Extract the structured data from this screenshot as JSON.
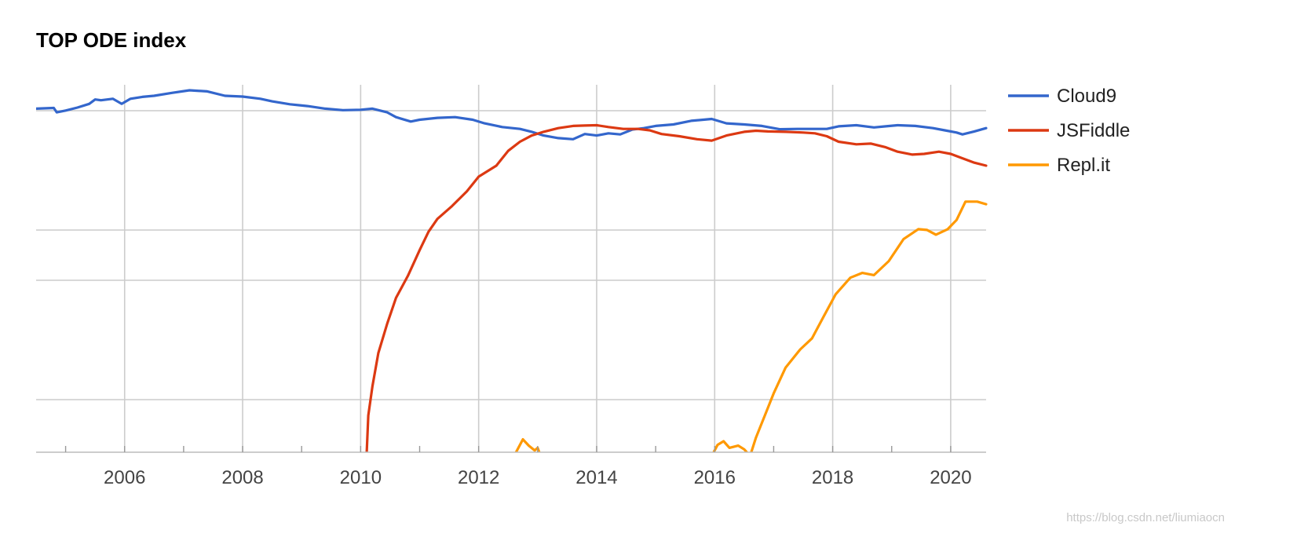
{
  "chart_data": {
    "type": "line",
    "title": "TOP ODE index",
    "xlabel": "",
    "ylabel": "",
    "xlim": [
      2004.5,
      2020.6
    ],
    "ylim": [
      0,
      1.0
    ],
    "x_ticks": [
      "2006",
      "2008",
      "2010",
      "2012",
      "2014",
      "2016",
      "2018",
      "2020"
    ],
    "grid": true,
    "legend_position": "right",
    "series": [
      {
        "name": "Cloud9",
        "color": "#3366cc",
        "points": [
          [
            2004.5,
            0.935
          ],
          [
            2004.8,
            0.937
          ],
          [
            2004.85,
            0.925
          ],
          [
            2005.0,
            0.93
          ],
          [
            2005.2,
            0.938
          ],
          [
            2005.4,
            0.948
          ],
          [
            2005.5,
            0.96
          ],
          [
            2005.6,
            0.958
          ],
          [
            2005.8,
            0.962
          ],
          [
            2005.95,
            0.948
          ],
          [
            2006.1,
            0.962
          ],
          [
            2006.3,
            0.967
          ],
          [
            2006.5,
            0.97
          ],
          [
            2006.8,
            0.978
          ],
          [
            2007.1,
            0.985
          ],
          [
            2007.4,
            0.982
          ],
          [
            2007.7,
            0.97
          ],
          [
            2008.0,
            0.968
          ],
          [
            2008.3,
            0.962
          ],
          [
            2008.5,
            0.955
          ],
          [
            2008.8,
            0.947
          ],
          [
            2009.1,
            0.942
          ],
          [
            2009.4,
            0.935
          ],
          [
            2009.7,
            0.931
          ],
          [
            2010.0,
            0.932
          ],
          [
            2010.2,
            0.935
          ],
          [
            2010.45,
            0.925
          ],
          [
            2010.6,
            0.912
          ],
          [
            2010.85,
            0.9
          ],
          [
            2011.0,
            0.905
          ],
          [
            2011.3,
            0.91
          ],
          [
            2011.6,
            0.912
          ],
          [
            2011.9,
            0.905
          ],
          [
            2012.1,
            0.895
          ],
          [
            2012.4,
            0.885
          ],
          [
            2012.7,
            0.88
          ],
          [
            2012.9,
            0.872
          ],
          [
            2013.1,
            0.862
          ],
          [
            2013.35,
            0.855
          ],
          [
            2013.6,
            0.852
          ],
          [
            2013.8,
            0.866
          ],
          [
            2014.0,
            0.862
          ],
          [
            2014.2,
            0.868
          ],
          [
            2014.4,
            0.865
          ],
          [
            2014.6,
            0.878
          ],
          [
            2014.8,
            0.882
          ],
          [
            2015.0,
            0.888
          ],
          [
            2015.3,
            0.892
          ],
          [
            2015.6,
            0.902
          ],
          [
            2015.95,
            0.907
          ],
          [
            2016.2,
            0.895
          ],
          [
            2016.5,
            0.892
          ],
          [
            2016.8,
            0.888
          ],
          [
            2017.1,
            0.879
          ],
          [
            2017.4,
            0.88
          ],
          [
            2017.7,
            0.88
          ],
          [
            2017.9,
            0.88
          ],
          [
            2018.1,
            0.887
          ],
          [
            2018.4,
            0.89
          ],
          [
            2018.7,
            0.884
          ],
          [
            2018.9,
            0.887
          ],
          [
            2019.1,
            0.89
          ],
          [
            2019.4,
            0.888
          ],
          [
            2019.7,
            0.882
          ],
          [
            2019.9,
            0.876
          ],
          [
            2020.1,
            0.87
          ],
          [
            2020.2,
            0.865
          ],
          [
            2020.4,
            0.873
          ],
          [
            2020.6,
            0.882
          ]
        ]
      },
      {
        "name": "JSFiddle",
        "color": "#dc3912",
        "points": [
          [
            2010.1,
            -0.01
          ],
          [
            2010.13,
            0.1
          ],
          [
            2010.2,
            0.18
          ],
          [
            2010.3,
            0.27
          ],
          [
            2010.45,
            0.35
          ],
          [
            2010.6,
            0.42
          ],
          [
            2010.8,
            0.48
          ],
          [
            2011.0,
            0.55
          ],
          [
            2011.15,
            0.6
          ],
          [
            2011.3,
            0.635
          ],
          [
            2011.55,
            0.67
          ],
          [
            2011.8,
            0.71
          ],
          [
            2012.0,
            0.75
          ],
          [
            2012.3,
            0.78
          ],
          [
            2012.5,
            0.82
          ],
          [
            2012.7,
            0.845
          ],
          [
            2012.9,
            0.862
          ],
          [
            2013.1,
            0.872
          ],
          [
            2013.35,
            0.882
          ],
          [
            2013.6,
            0.888
          ],
          [
            2013.8,
            0.889
          ],
          [
            2014.0,
            0.89
          ],
          [
            2014.2,
            0.885
          ],
          [
            2014.45,
            0.88
          ],
          [
            2014.7,
            0.88
          ],
          [
            2014.9,
            0.876
          ],
          [
            2015.1,
            0.866
          ],
          [
            2015.4,
            0.86
          ],
          [
            2015.7,
            0.852
          ],
          [
            2015.95,
            0.848
          ],
          [
            2016.2,
            0.862
          ],
          [
            2016.5,
            0.872
          ],
          [
            2016.7,
            0.875
          ],
          [
            2016.9,
            0.873
          ],
          [
            2017.2,
            0.872
          ],
          [
            2017.5,
            0.87
          ],
          [
            2017.7,
            0.868
          ],
          [
            2017.9,
            0.86
          ],
          [
            2018.1,
            0.845
          ],
          [
            2018.4,
            0.838
          ],
          [
            2018.65,
            0.84
          ],
          [
            2018.9,
            0.83
          ],
          [
            2019.1,
            0.818
          ],
          [
            2019.35,
            0.81
          ],
          [
            2019.55,
            0.812
          ],
          [
            2019.8,
            0.818
          ],
          [
            2020.0,
            0.812
          ],
          [
            2020.2,
            0.8
          ],
          [
            2020.4,
            0.788
          ],
          [
            2020.6,
            0.78
          ]
        ]
      },
      {
        "name": "Repl.it",
        "color": "#ff9900",
        "points": [
          [
            2012.6,
            -0.01
          ],
          [
            2012.75,
            0.035
          ],
          [
            2012.85,
            0.018
          ],
          [
            2012.95,
            0.005
          ],
          [
            2013.0,
            0.012
          ],
          [
            2013.05,
            -0.01
          ],
          null,
          [
            2015.95,
            -0.01
          ],
          [
            2016.05,
            0.02
          ],
          [
            2016.15,
            0.03
          ],
          [
            2016.25,
            0.012
          ],
          [
            2016.4,
            0.018
          ],
          [
            2016.5,
            0.008
          ],
          [
            2016.6,
            -0.01
          ],
          [
            2016.7,
            0.04
          ],
          [
            2016.85,
            0.1
          ],
          [
            2017.0,
            0.16
          ],
          [
            2017.2,
            0.23
          ],
          [
            2017.45,
            0.28
          ],
          [
            2017.65,
            0.31
          ],
          [
            2017.85,
            0.37
          ],
          [
            2018.05,
            0.43
          ],
          [
            2018.3,
            0.475
          ],
          [
            2018.5,
            0.488
          ],
          [
            2018.7,
            0.482
          ],
          [
            2018.95,
            0.52
          ],
          [
            2019.2,
            0.58
          ],
          [
            2019.45,
            0.607
          ],
          [
            2019.6,
            0.605
          ],
          [
            2019.75,
            0.592
          ],
          [
            2019.95,
            0.607
          ],
          [
            2020.1,
            0.632
          ],
          [
            2020.25,
            0.682
          ],
          [
            2020.45,
            0.682
          ],
          [
            2020.6,
            0.675
          ]
        ]
      }
    ]
  },
  "watermark": "https://blog.csdn.net/liumiaocn"
}
